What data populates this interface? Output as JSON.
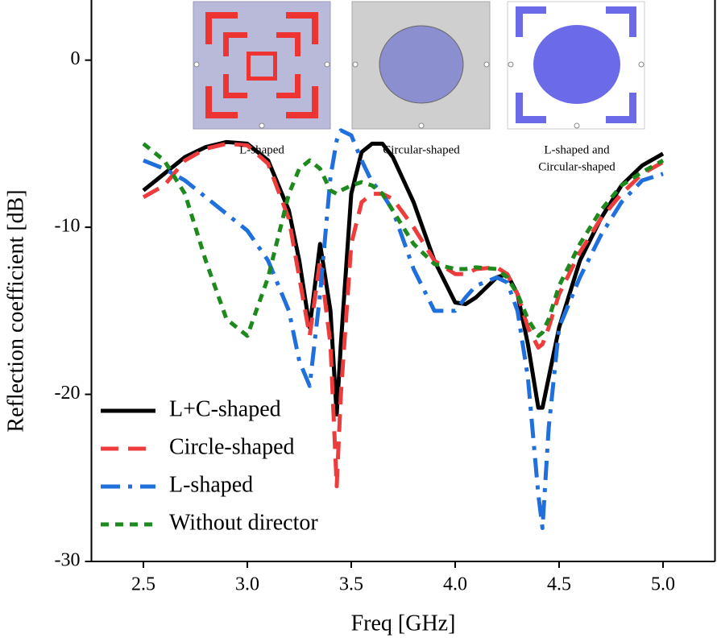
{
  "chart_data": {
    "type": "line",
    "xlabel": "Freq [GHz]",
    "ylabel": "Reflection coefficient [dB]",
    "annotations": [
      [
        "L-shaped"
      ],
      [
        "Circular-shaped"
      ],
      [
        "L-shaped and",
        "Circular-shaped"
      ]
    ],
    "x": [
      2.5,
      2.6,
      2.7,
      2.8,
      2.9,
      3.0,
      3.1,
      3.2,
      3.25,
      3.3,
      3.35,
      3.4,
      3.43,
      3.45,
      3.5,
      3.55,
      3.6,
      3.65,
      3.7,
      3.8,
      3.9,
      4.0,
      4.05,
      4.1,
      4.2,
      4.25,
      4.3,
      4.35,
      4.4,
      4.42,
      4.45,
      4.5,
      4.6,
      4.7,
      4.8,
      4.9,
      5.0
    ],
    "series": [
      {
        "name": "L+C-shaped",
        "color": "#000000",
        "dash": "solid",
        "values": [
          -7.8,
          -6.8,
          -5.8,
          -5.2,
          -4.9,
          -5,
          -6,
          -9,
          -12,
          -16,
          -11,
          -15,
          -21.2,
          -17,
          -8,
          -5.5,
          -5,
          -5,
          -5.8,
          -8.5,
          -12,
          -14.5,
          -14.6,
          -14.2,
          -13,
          -12.8,
          -14,
          -17,
          -20.8,
          -20.8,
          -19,
          -16,
          -12,
          -9.5,
          -7.5,
          -6.3,
          -5.6
        ]
      },
      {
        "name": "Circle-shaped",
        "color": "#ee3b3b",
        "dash": "dash",
        "values": [
          -8.2,
          -7.5,
          -6,
          -5.3,
          -5,
          -5.1,
          -6.2,
          -9.5,
          -13,
          -16.5,
          -12,
          -17,
          -25.5,
          -20,
          -11,
          -8.5,
          -8,
          -8,
          -8.3,
          -10,
          -12,
          -12.8,
          -12.8,
          -12.5,
          -12.4,
          -12.8,
          -14,
          -16,
          -17.2,
          -17,
          -16,
          -14,
          -11.5,
          -9.5,
          -8,
          -6.8,
          -6.1
        ]
      },
      {
        "name": "L-shaped",
        "color": "#1f6fdc",
        "dash": "dashdot",
        "values": [
          -6,
          -6.5,
          -7.2,
          -8.2,
          -9.2,
          -10.2,
          -12,
          -15,
          -18,
          -19.5,
          -14,
          -7,
          -4.8,
          -4.2,
          -4.5,
          -6,
          -7.3,
          -8,
          -9,
          -12.5,
          -15,
          -15,
          -14.2,
          -13.5,
          -13,
          -13.3,
          -15,
          -19,
          -26,
          -28,
          -22,
          -16,
          -13,
          -10.5,
          -8.5,
          -7.2,
          -6.8
        ]
      },
      {
        "name": "Without director",
        "color": "#1e8a1e",
        "dash": "dot",
        "values": [
          -5,
          -6,
          -8,
          -12,
          -15.5,
          -16.5,
          -13,
          -8,
          -6.5,
          -6,
          -6.5,
          -7.8,
          -8,
          -7.8,
          -7.5,
          -7.3,
          -7.5,
          -8,
          -9,
          -11,
          -12.2,
          -12.5,
          -12.5,
          -12.4,
          -12.5,
          -13,
          -14,
          -15.5,
          -16.5,
          -16.3,
          -15.5,
          -13.5,
          -11,
          -9,
          -7.5,
          -6.7,
          -6
        ]
      }
    ],
    "xlim": [
      2.25,
      5.25
    ],
    "ylim": [
      -30,
      3.6
    ],
    "xticks": [
      2.5,
      {
        "value": 3,
        "label": "3.0"
      },
      3.5,
      {
        "value": 4,
        "label": "4.0"
      },
      4.5,
      {
        "value": 5,
        "label": "5.0"
      }
    ],
    "yticks": [
      0,
      -10,
      -20,
      -30
    ],
    "grid": false,
    "legend": "lower left"
  }
}
